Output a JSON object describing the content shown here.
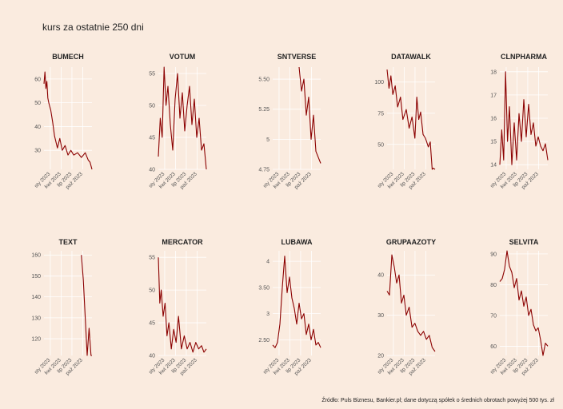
{
  "page": {
    "title": "kurs za ostatnie 250 dni",
    "caption": "Źródło: Puls Biznesu, Bankier.pl; dane dotyczą spółek o średnich obrotach powyżej 500 tys. zł"
  },
  "colors": {
    "background": "#faebdf",
    "grid": "#ffffff",
    "line": "#8b0000",
    "title": "#222222",
    "tick": "#555555"
  },
  "chart_data": {
    "type": "line",
    "grid": true,
    "x_ticks": [
      "sty 2023",
      "kwi 2023",
      "lip 2023",
      "paź 2023"
    ],
    "panels": [
      {
        "name": "BUMECH",
        "ylim": [
          22,
          65
        ],
        "y_ticks": [
          30,
          40,
          50,
          60
        ],
        "x": [
          0,
          0.02,
          0.04,
          0.06,
          0.08,
          0.1,
          0.14,
          0.18,
          0.22,
          0.28,
          0.33,
          0.38,
          0.44,
          0.5,
          0.56,
          0.62,
          0.7,
          0.78,
          0.86,
          0.92,
          0.96,
          1.0
        ],
        "y": [
          58,
          63,
          56,
          59,
          52,
          50,
          47,
          42,
          36,
          31,
          35,
          30,
          32,
          28,
          30,
          28,
          29,
          27,
          29,
          26,
          25,
          22
        ]
      },
      {
        "name": "VOTUM",
        "ylim": [
          40,
          56
        ],
        "y_ticks": [
          40,
          45,
          50,
          55
        ],
        "x": [
          0,
          0.04,
          0.08,
          0.12,
          0.16,
          0.2,
          0.25,
          0.3,
          0.35,
          0.4,
          0.45,
          0.5,
          0.55,
          0.6,
          0.65,
          0.7,
          0.75,
          0.8,
          0.85,
          0.9,
          0.95,
          1.0
        ],
        "y": [
          42,
          48,
          45,
          56,
          50,
          53,
          47,
          43,
          51,
          55,
          48,
          52,
          46,
          50,
          53,
          47,
          51,
          45,
          48,
          43,
          44,
          40
        ]
      },
      {
        "name": "SNTVERSE",
        "ylim": [
          4.75,
          5.6
        ],
        "y_ticks": [
          4.75,
          5.0,
          5.25,
          5.5
        ],
        "x": [
          0.55,
          0.6,
          0.65,
          0.7,
          0.75,
          0.8,
          0.85,
          0.9,
          0.95,
          1.0
        ],
        "y": [
          5.6,
          5.4,
          5.5,
          5.2,
          5.35,
          5.0,
          5.2,
          4.9,
          4.85,
          4.8
        ]
      },
      {
        "name": "DATAWALK",
        "ylim": [
          30,
          112
        ],
        "y_ticks": [
          50,
          75,
          100
        ],
        "x": [
          0,
          0.04,
          0.08,
          0.12,
          0.17,
          0.22,
          0.28,
          0.33,
          0.4,
          0.46,
          0.52,
          0.58,
          0.62,
          0.66,
          0.7,
          0.75,
          0.8,
          0.86,
          0.9,
          0.94,
          0.96,
          1.0
        ],
        "y": [
          110,
          95,
          105,
          90,
          97,
          80,
          88,
          70,
          78,
          63,
          72,
          55,
          88,
          70,
          76,
          58,
          55,
          48,
          52,
          30,
          31,
          30
        ]
      },
      {
        "name": "CLNPHARMA",
        "ylim": [
          13.8,
          18.2
        ],
        "y_ticks": [
          14,
          15,
          16,
          17,
          18
        ],
        "x": [
          0,
          0.04,
          0.08,
          0.12,
          0.16,
          0.2,
          0.25,
          0.3,
          0.35,
          0.4,
          0.45,
          0.5,
          0.55,
          0.6,
          0.65,
          0.7,
          0.75,
          0.8,
          0.85,
          0.9,
          0.95,
          1.0
        ],
        "y": [
          14,
          15.5,
          14.2,
          18,
          15,
          16.5,
          14,
          15.8,
          14.2,
          16.2,
          15,
          16.8,
          15.2,
          16.6,
          15.3,
          15.8,
          14.8,
          15.2,
          14.8,
          14.6,
          14.9,
          14.2
        ]
      },
      {
        "name": "TEXT",
        "ylim": [
          112,
          162
        ],
        "y_ticks": [
          120,
          130,
          140,
          150,
          160
        ],
        "x": [
          0.78,
          0.82,
          0.86,
          0.9,
          0.94,
          0.98,
          1.0
        ],
        "y": [
          160,
          148,
          130,
          112,
          125,
          112,
          112
        ]
      },
      {
        "name": "MERCATOR",
        "ylim": [
          40,
          56
        ],
        "y_ticks": [
          40,
          45,
          50,
          55
        ],
        "x": [
          0,
          0.03,
          0.06,
          0.1,
          0.14,
          0.18,
          0.22,
          0.27,
          0.32,
          0.37,
          0.42,
          0.48,
          0.54,
          0.6,
          0.66,
          0.72,
          0.78,
          0.84,
          0.9,
          0.95,
          1.0
        ],
        "y": [
          55,
          48,
          50,
          46,
          48,
          43,
          45,
          41,
          44,
          42,
          46,
          41,
          43,
          41,
          42,
          40.5,
          42,
          41,
          41.5,
          40.5,
          41
        ]
      },
      {
        "name": "LUBAWA",
        "ylim": [
          2.2,
          4.2
        ],
        "y_ticks": [
          2.5,
          3.0,
          3.5,
          4.0
        ],
        "x": [
          0,
          0.05,
          0.1,
          0.15,
          0.2,
          0.25,
          0.3,
          0.35,
          0.4,
          0.45,
          0.5,
          0.55,
          0.6,
          0.65,
          0.7,
          0.75,
          0.8,
          0.85,
          0.9,
          0.95,
          1.0
        ],
        "y": [
          2.4,
          2.35,
          2.45,
          2.8,
          3.5,
          4.1,
          3.4,
          3.7,
          3.3,
          3.1,
          2.8,
          3.2,
          2.9,
          3.0,
          2.6,
          2.8,
          2.5,
          2.7,
          2.4,
          2.45,
          2.35
        ]
      },
      {
        "name": "GRUPAAZOTY",
        "ylim": [
          20,
          46
        ],
        "y_ticks": [
          20,
          30,
          40
        ],
        "x": [
          0,
          0.05,
          0.1,
          0.15,
          0.2,
          0.25,
          0.3,
          0.35,
          0.4,
          0.46,
          0.52,
          0.58,
          0.64,
          0.7,
          0.76,
          0.82,
          0.88,
          0.94,
          1.0
        ],
        "y": [
          36,
          35,
          45,
          42,
          38,
          40,
          33,
          35,
          30,
          32,
          27,
          28,
          26,
          25,
          26,
          24,
          25,
          22,
          21
        ]
      },
      {
        "name": "SELVITA",
        "ylim": [
          57,
          91
        ],
        "y_ticks": [
          60,
          70,
          80,
          90
        ],
        "x": [
          0,
          0.05,
          0.1,
          0.15,
          0.2,
          0.25,
          0.3,
          0.35,
          0.4,
          0.45,
          0.5,
          0.55,
          0.6,
          0.65,
          0.7,
          0.75,
          0.8,
          0.85,
          0.9,
          0.95,
          1.0
        ],
        "y": [
          81,
          82,
          85,
          91,
          86,
          84,
          79,
          82,
          75,
          78,
          73,
          76,
          70,
          72,
          67,
          65,
          66,
          62,
          57,
          61,
          60
        ]
      }
    ]
  }
}
